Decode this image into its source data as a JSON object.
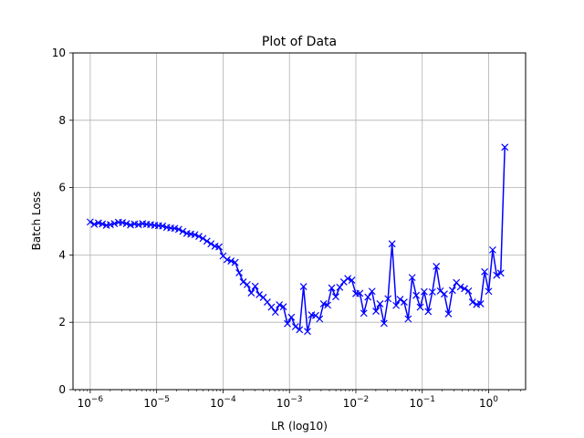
{
  "chart_data": {
    "type": "line",
    "title": "Plot of Data",
    "xlabel": "LR (log10)",
    "ylabel": "Batch Loss",
    "xscale": "log",
    "xlim": [
      5.5e-07,
      3.6
    ],
    "ylim": [
      0,
      10
    ],
    "grid": true,
    "x_ticks": [
      {
        "value": 1e-06,
        "base": "10",
        "exp": "−6"
      },
      {
        "value": 1e-05,
        "base": "10",
        "exp": "−5"
      },
      {
        "value": 0.0001,
        "base": "10",
        "exp": "−4"
      },
      {
        "value": 0.001,
        "base": "10",
        "exp": "−3"
      },
      {
        "value": 0.01,
        "base": "10",
        "exp": "−2"
      },
      {
        "value": 0.1,
        "base": "10",
        "exp": "−1"
      },
      {
        "value": 1,
        "base": "10",
        "exp": "0"
      }
    ],
    "y_ticks": [
      {
        "value": 0,
        "label": "0"
      },
      {
        "value": 2,
        "label": "2"
      },
      {
        "value": 4,
        "label": "4"
      },
      {
        "value": 6,
        "label": "6"
      },
      {
        "value": 8,
        "label": "8"
      },
      {
        "value": 10,
        "label": "10"
      }
    ],
    "series": [
      {
        "color": "#0000ff",
        "marker": "x",
        "x": [
          1e-06,
          1.15e-06,
          1.33e-06,
          1.52e-06,
          1.75e-06,
          2.01e-06,
          2.31e-06,
          2.66e-06,
          3.05e-06,
          3.51e-06,
          4.04e-06,
          4.64e-06,
          5.34e-06,
          6.14e-06,
          7.05e-06,
          8.11e-06,
          9.33e-06,
          1.07e-05,
          1.23e-05,
          1.42e-05,
          1.63e-05,
          1.87e-05,
          2.15e-05,
          2.48e-05,
          2.85e-05,
          3.27e-05,
          3.76e-05,
          4.33e-05,
          4.98e-05,
          5.72e-05,
          6.58e-05,
          7.56e-05,
          8.7e-05,
          0.0001,
          0.000115,
          0.000132,
          0.000152,
          0.000175,
          0.000201,
          0.000231,
          0.000266,
          0.000305,
          0.000351,
          0.000404,
          0.000464,
          0.000534,
          0.000614,
          0.000705,
          0.000811,
          0.000933,
          0.00107,
          0.00123,
          0.00142,
          0.00163,
          0.00187,
          0.00215,
          0.00248,
          0.00285,
          0.00327,
          0.00376,
          0.00433,
          0.00498,
          0.00572,
          0.00658,
          0.00756,
          0.0087,
          0.01,
          0.0115,
          0.0132,
          0.0152,
          0.0175,
          0.0201,
          0.0231,
          0.0266,
          0.0305,
          0.0351,
          0.0404,
          0.0464,
          0.0534,
          0.0614,
          0.0705,
          0.0811,
          0.0933,
          0.107,
          0.123,
          0.142,
          0.163,
          0.187,
          0.215,
          0.248,
          0.285,
          0.327,
          0.376,
          0.433,
          0.498,
          0.572,
          0.658,
          0.756,
          0.87,
          1.0,
          1.15,
          1.32,
          1.52,
          1.75
        ],
        "y": [
          4.98,
          4.91,
          4.95,
          4.92,
          4.88,
          4.9,
          4.93,
          4.97,
          4.96,
          4.93,
          4.89,
          4.92,
          4.9,
          4.93,
          4.91,
          4.9,
          4.88,
          4.87,
          4.86,
          4.82,
          4.8,
          4.79,
          4.76,
          4.7,
          4.64,
          4.62,
          4.6,
          4.55,
          4.49,
          4.41,
          4.33,
          4.26,
          4.24,
          3.97,
          3.86,
          3.82,
          3.78,
          3.47,
          3.2,
          3.12,
          2.87,
          3.07,
          2.82,
          2.74,
          2.6,
          2.45,
          2.3,
          2.52,
          2.46,
          1.96,
          2.15,
          1.87,
          1.78,
          3.06,
          1.73,
          2.22,
          2.2,
          2.1,
          2.55,
          2.51,
          3.02,
          2.76,
          3.04,
          3.2,
          3.3,
          3.25,
          2.85,
          2.86,
          2.27,
          2.75,
          2.92,
          2.33,
          2.55,
          1.97,
          2.7,
          4.33,
          2.5,
          2.68,
          2.6,
          2.1,
          3.33,
          2.8,
          2.45,
          2.91,
          2.32,
          2.9,
          3.66,
          2.93,
          2.84,
          2.25,
          2.95,
          3.18,
          3.05,
          3.0,
          2.93,
          2.6,
          2.53,
          2.55,
          3.5,
          2.92,
          4.15,
          3.4,
          3.46,
          7.2
        ]
      }
    ]
  }
}
